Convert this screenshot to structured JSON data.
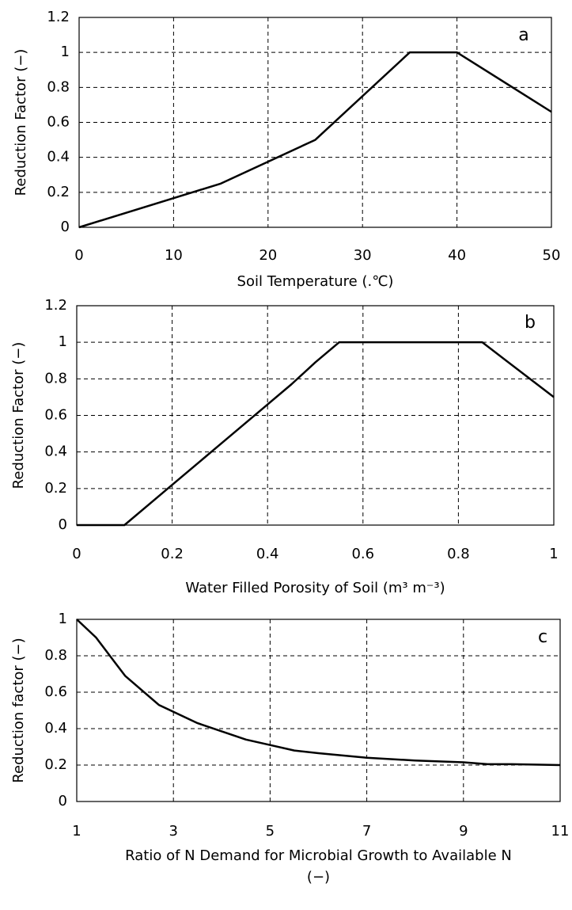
{
  "chart_data": [
    {
      "type": "line",
      "annotation": "a",
      "x_label": [
        "Soil Temperature (.℃)"
      ],
      "y_label": "Reduction Factor (−)",
      "xlim": [
        0,
        50
      ],
      "xticks": [
        0,
        10,
        20,
        30,
        40,
        50
      ],
      "ylim": [
        0,
        1.2
      ],
      "yticks": [
        0,
        0.2,
        0.4,
        0.6,
        0.8,
        1,
        1.2
      ],
      "grid": true,
      "series": [
        {
          "color": "#000000",
          "x": [
            0,
            15,
            25,
            35,
            40,
            50
          ],
          "values": [
            0,
            0.25,
            0.5,
            1,
            1,
            0.66
          ]
        }
      ]
    },
    {
      "type": "line",
      "annotation": "b",
      "x_label": [
        "Water Filled Porosity of Soil (m³ m⁻³)"
      ],
      "y_label": "Reduction Factor (−)",
      "xlim": [
        0,
        1
      ],
      "xticks": [
        0,
        0.2,
        0.4,
        0.6,
        0.8,
        1
      ],
      "ylim": [
        0,
        1.2
      ],
      "yticks": [
        0,
        0.2,
        0.4,
        0.6,
        0.8,
        1,
        1.2
      ],
      "grid": true,
      "series": [
        {
          "color": "#000000",
          "x": [
            0,
            0.1,
            0.2,
            0.3,
            0.4,
            0.45,
            0.5,
            0.55,
            0.85,
            1
          ],
          "values": [
            0,
            0,
            0.22,
            0.44,
            0.66,
            0.77,
            0.89,
            1,
            1,
            0.7
          ]
        }
      ]
    },
    {
      "type": "line",
      "annotation": "c",
      "x_label": [
        "Ratio of N Demand for Microbial Growth to Available N",
        "(−)"
      ],
      "y_label": "Reduction factor (−)",
      "xlim": [
        1,
        11
      ],
      "xticks": [
        1,
        3,
        5,
        7,
        9,
        11
      ],
      "ylim": [
        0,
        1
      ],
      "yticks": [
        0,
        0.2,
        0.4,
        0.6,
        0.8,
        1
      ],
      "grid": true,
      "series": [
        {
          "color": "#000000",
          "x": [
            1,
            1.4,
            1.8,
            2,
            2.7,
            3.5,
            4.5,
            5,
            5.5,
            6,
            7,
            8,
            9,
            9.5,
            10,
            11
          ],
          "values": [
            1,
            0.9,
            0.76,
            0.69,
            0.53,
            0.43,
            0.34,
            0.31,
            0.28,
            0.265,
            0.24,
            0.225,
            0.215,
            0.205,
            0.205,
            0.2
          ]
        }
      ]
    }
  ]
}
